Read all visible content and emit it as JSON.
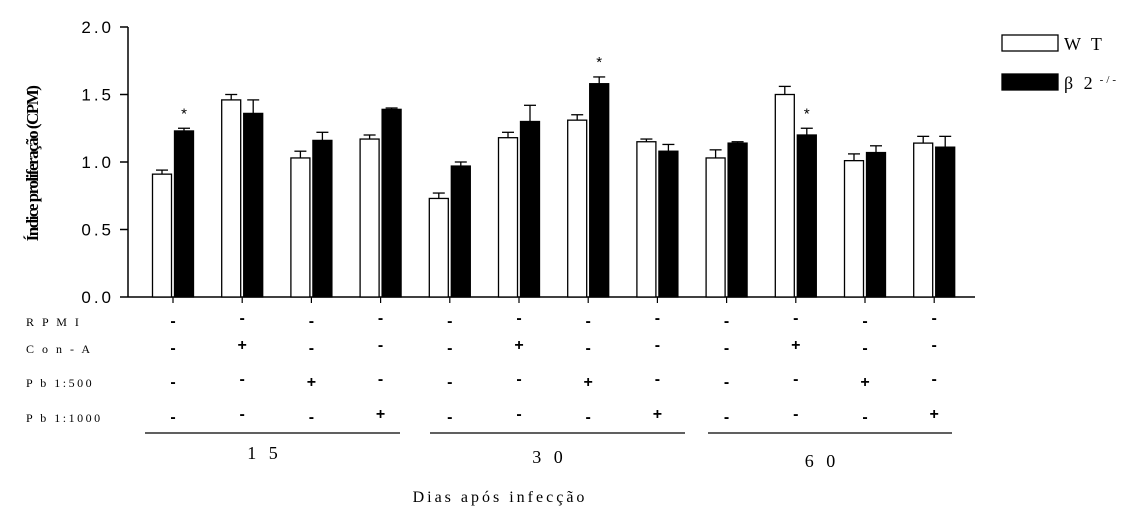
{
  "chart_data": {
    "type": "bar",
    "ylabel": "Índice proliferação (CPM)",
    "xlabel": "Dias após infecção",
    "ylim": [
      0,
      2.0
    ],
    "yticks": [
      "0.0",
      "0.5",
      "1.0",
      "1.5",
      "2.0"
    ],
    "ytick_values": [
      0,
      0.5,
      1.0,
      1.5,
      2.0
    ],
    "legend_position": "top-right",
    "series": [
      {
        "name": "W T",
        "fill": "#ffffff",
        "values": [
          0.91,
          1.46,
          1.03,
          1.17,
          0.73,
          1.18,
          1.31,
          1.15,
          1.03,
          1.5,
          1.01,
          1.14
        ],
        "errors": [
          0.03,
          0.04,
          0.05,
          0.03,
          0.04,
          0.04,
          0.04,
          0.02,
          0.06,
          0.06,
          0.05,
          0.05
        ]
      },
      {
        "name": "β 2",
        "name_sup": "-/-",
        "fill": "#000000",
        "values": [
          1.23,
          1.36,
          1.16,
          1.39,
          0.97,
          1.3,
          1.58,
          1.08,
          1.14,
          1.2,
          1.07,
          1.11
        ],
        "errors": [
          0.02,
          0.1,
          0.06,
          0.01,
          0.03,
          0.12,
          0.05,
          0.05,
          0.01,
          0.05,
          0.05,
          0.08
        ]
      }
    ],
    "significance_marks": [
      {
        "category": 0,
        "series": 1,
        "label": "*"
      },
      {
        "category": 6,
        "series": 1,
        "label": "*"
      },
      {
        "category": 9,
        "series": 1,
        "label": "*"
      }
    ],
    "condition_rows": [
      {
        "label": "R P M I",
        "signs": [
          "-",
          "-",
          "-",
          "-",
          "-",
          "-",
          "-",
          "-",
          "-",
          "-",
          "-",
          "-"
        ]
      },
      {
        "label": "C o n - A",
        "signs": [
          "-",
          "+",
          "-",
          "-",
          "-",
          "+",
          "-",
          "-",
          "-",
          "+",
          "-",
          "-"
        ]
      },
      {
        "label": "P b 1:500",
        "signs": [
          "-",
          "-",
          "+",
          "-",
          "-",
          "-",
          "+",
          "-",
          "-",
          "-",
          "+",
          "-"
        ]
      },
      {
        "label": "P b 1:1000",
        "signs": [
          "-",
          "-",
          "-",
          "+",
          "-",
          "-",
          "-",
          "+",
          "-",
          "-",
          "-",
          "+"
        ]
      }
    ],
    "groups": [
      "1 5",
      "3 0",
      "6 0"
    ],
    "title": ""
  }
}
